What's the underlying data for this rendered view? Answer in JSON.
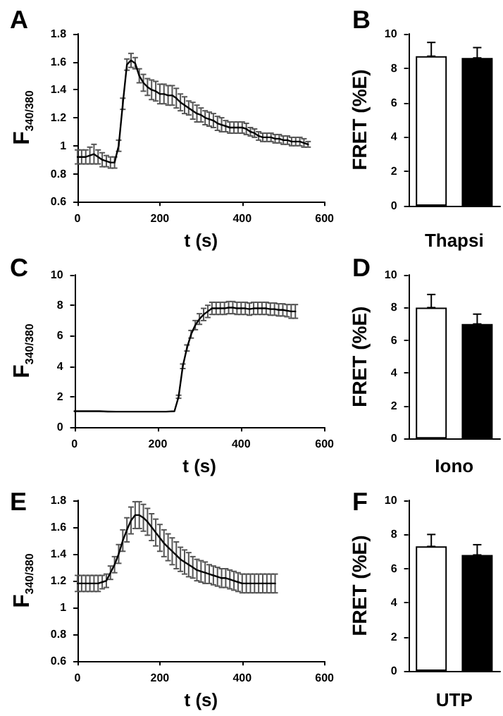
{
  "chart_data": [
    {
      "type": "line",
      "title": "A",
      "xlabel": "t (s)",
      "ylabel": "F$_{340/380}$",
      "color": "#000000",
      "xlim": [
        0,
        600
      ],
      "xticks": [
        0,
        200,
        400,
        600
      ],
      "ylim": [
        0.6,
        1.8
      ],
      "yticks": [
        0.6,
        0.8,
        1,
        1.2,
        1.4,
        1.6,
        1.8
      ],
      "x": [
        0,
        10,
        20,
        30,
        40,
        50,
        60,
        70,
        80,
        90,
        100,
        110,
        120,
        130,
        140,
        150,
        160,
        170,
        180,
        190,
        200,
        210,
        220,
        230,
        240,
        250,
        260,
        270,
        280,
        290,
        300,
        310,
        320,
        330,
        340,
        350,
        360,
        370,
        380,
        390,
        400,
        410,
        420,
        430,
        440,
        450,
        460,
        470,
        480,
        490,
        500,
        510,
        520,
        530,
        540,
        550,
        560
      ],
      "values": [
        0.92,
        0.92,
        0.92,
        0.93,
        0.94,
        0.92,
        0.9,
        0.89,
        0.88,
        0.88,
        1.0,
        1.3,
        1.58,
        1.61,
        1.59,
        1.5,
        1.45,
        1.42,
        1.4,
        1.39,
        1.37,
        1.37,
        1.36,
        1.36,
        1.34,
        1.31,
        1.29,
        1.27,
        1.25,
        1.23,
        1.22,
        1.2,
        1.19,
        1.18,
        1.16,
        1.15,
        1.14,
        1.13,
        1.13,
        1.13,
        1.13,
        1.12,
        1.1,
        1.09,
        1.07,
        1.06,
        1.06,
        1.06,
        1.05,
        1.05,
        1.04,
        1.04,
        1.03,
        1.03,
        1.03,
        1.02,
        1.01
      ],
      "errors": [
        0.05,
        0.05,
        0.05,
        0.06,
        0.07,
        0.05,
        0.05,
        0.04,
        0.04,
        0.04,
        0.04,
        0.04,
        0.04,
        0.05,
        0.04,
        0.05,
        0.06,
        0.06,
        0.07,
        0.07,
        0.07,
        0.07,
        0.07,
        0.07,
        0.07,
        0.06,
        0.06,
        0.05,
        0.06,
        0.06,
        0.05,
        0.05,
        0.05,
        0.05,
        0.05,
        0.05,
        0.04,
        0.04,
        0.04,
        0.04,
        0.04,
        0.04,
        0.03,
        0.03,
        0.03,
        0.03,
        0.03,
        0.03,
        0.03,
        0.03,
        0.03,
        0.03,
        0.03,
        0.03,
        0.03,
        0.03,
        0.02
      ]
    },
    {
      "type": "bar",
      "title": "B",
      "xlabel": "Thapsi",
      "ylabel": "FRET (%E)",
      "categories": [
        null,
        null
      ],
      "values": [
        8.7,
        8.6
      ],
      "colors": [
        "#ffffff",
        "#000000"
      ],
      "errors": [
        [
          8.7,
          9.5
        ],
        [
          8.6,
          9.2
        ]
      ],
      "ylim": [
        0,
        10
      ],
      "yticks": [
        0,
        2,
        4,
        6,
        8,
        10
      ]
    },
    {
      "type": "line",
      "title": "C",
      "xlabel": "t (s)",
      "ylabel": "F$_{340/380}$",
      "color": "#000000",
      "xlim": [
        0,
        600
      ],
      "xticks": [
        0,
        200,
        400,
        600
      ],
      "ylim": [
        0,
        10
      ],
      "yticks": [
        0,
        2,
        4,
        6,
        8,
        10
      ],
      "x": [
        0,
        20,
        40,
        60,
        80,
        100,
        120,
        140,
        160,
        180,
        200,
        220,
        240,
        250,
        260,
        270,
        280,
        290,
        300,
        310,
        320,
        330,
        340,
        350,
        360,
        370,
        380,
        390,
        400,
        410,
        420,
        430,
        440,
        450,
        460,
        470,
        480,
        490,
        500,
        510,
        520,
        530
      ],
      "values": [
        1.05,
        1.05,
        1.05,
        1.05,
        1.03,
        1.02,
        1.02,
        1.02,
        1.02,
        1.02,
        1.02,
        1.02,
        1.05,
        2.0,
        4.0,
        5.2,
        6.1,
        6.7,
        7.1,
        7.4,
        7.6,
        7.8,
        7.8,
        7.8,
        7.8,
        7.85,
        7.85,
        7.8,
        7.8,
        7.8,
        7.75,
        7.8,
        7.8,
        7.8,
        7.8,
        7.75,
        7.75,
        7.7,
        7.7,
        7.65,
        7.6,
        7.6
      ],
      "errors": [
        null,
        null,
        null,
        null,
        null,
        null,
        null,
        null,
        null,
        null,
        null,
        null,
        null,
        0.1,
        0.15,
        0.2,
        0.25,
        0.3,
        0.35,
        0.4,
        0.4,
        0.4,
        0.4,
        0.4,
        0.4,
        0.4,
        0.4,
        0.4,
        0.4,
        0.4,
        0.4,
        0.4,
        0.4,
        0.4,
        0.4,
        0.4,
        0.4,
        0.4,
        0.4,
        0.4,
        0.45,
        0.45
      ]
    },
    {
      "type": "bar",
      "title": "D",
      "xlabel": "Iono",
      "ylabel": "FRET (%E)",
      "categories": [
        null,
        null
      ],
      "values": [
        8.0,
        7.0
      ],
      "colors": [
        "#ffffff",
        "#000000"
      ],
      "errors": [
        [
          8.0,
          8.8
        ],
        [
          7.0,
          7.6
        ]
      ],
      "ylim": [
        0,
        10
      ],
      "yticks": [
        0,
        2,
        4,
        6,
        8,
        10
      ]
    },
    {
      "type": "line",
      "title": "E",
      "xlabel": "t (s)",
      "ylabel": "F$_{340/380}$",
      "color": "#000000",
      "xlim": [
        0,
        600
      ],
      "xticks": [
        0,
        200,
        400,
        600
      ],
      "ylim": [
        0.6,
        1.8
      ],
      "yticks": [
        0.6,
        0.8,
        1,
        1.2,
        1.4,
        1.6,
        1.8
      ],
      "x": [
        0,
        10,
        20,
        30,
        40,
        50,
        60,
        70,
        80,
        90,
        100,
        110,
        120,
        130,
        140,
        150,
        160,
        170,
        180,
        190,
        200,
        210,
        220,
        230,
        240,
        250,
        260,
        270,
        280,
        290,
        300,
        310,
        320,
        330,
        340,
        350,
        360,
        370,
        380,
        390,
        400,
        410,
        420,
        430,
        440,
        450,
        460,
        470,
        480
      ],
      "values": [
        1.18,
        1.18,
        1.18,
        1.18,
        1.18,
        1.18,
        1.19,
        1.2,
        1.26,
        1.32,
        1.4,
        1.5,
        1.58,
        1.65,
        1.69,
        1.69,
        1.67,
        1.64,
        1.6,
        1.56,
        1.52,
        1.48,
        1.45,
        1.42,
        1.39,
        1.36,
        1.34,
        1.32,
        1.3,
        1.28,
        1.27,
        1.26,
        1.25,
        1.24,
        1.23,
        1.22,
        1.22,
        1.21,
        1.2,
        1.19,
        1.18,
        1.18,
        1.18,
        1.18,
        1.18,
        1.18,
        1.18,
        1.18,
        1.18
      ],
      "errors": [
        0.06,
        0.06,
        0.06,
        0.06,
        0.06,
        0.06,
        0.05,
        0.05,
        0.05,
        0.06,
        0.07,
        0.08,
        0.09,
        0.1,
        0.1,
        0.1,
        0.1,
        0.1,
        0.1,
        0.1,
        0.1,
        0.1,
        0.1,
        0.1,
        0.1,
        0.09,
        0.09,
        0.09,
        0.08,
        0.08,
        0.08,
        0.08,
        0.07,
        0.07,
        0.07,
        0.07,
        0.07,
        0.07,
        0.07,
        0.07,
        0.07,
        0.07,
        0.07,
        0.07,
        0.07,
        0.07,
        0.07,
        0.07,
        0.07
      ]
    },
    {
      "type": "bar",
      "title": "F",
      "xlabel": "UTP",
      "ylabel": "FRET (%E)",
      "categories": [
        null,
        null
      ],
      "values": [
        7.3,
        6.8
      ],
      "colors": [
        "#ffffff",
        "#000000"
      ],
      "errors": [
        [
          7.3,
          8.0
        ],
        [
          6.8,
          7.4
        ]
      ],
      "ylim": [
        0,
        10
      ],
      "yticks": [
        0,
        2,
        4,
        6,
        8,
        10
      ]
    }
  ]
}
